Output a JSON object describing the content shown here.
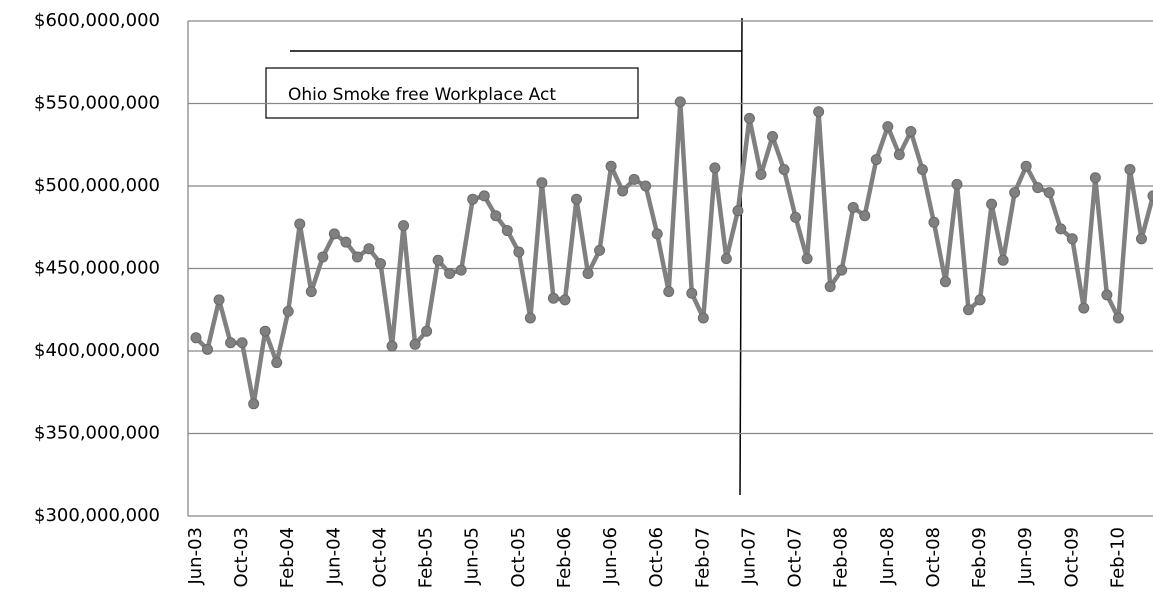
{
  "chart_data": {
    "type": "line",
    "annotation": "Ohio Smoke free Workplace Act",
    "categories": [
      "Jun-03",
      null,
      null,
      null,
      "Oct-03",
      null,
      null,
      null,
      "Feb-04",
      null,
      null,
      null,
      "Jun-04",
      null,
      null,
      null,
      "Oct-04",
      null,
      null,
      null,
      "Feb-05",
      null,
      null,
      null,
      "Jun-05",
      null,
      null,
      null,
      "Oct-05",
      null,
      null,
      null,
      "Feb-06",
      null,
      null,
      null,
      "Jun-06",
      null,
      null,
      null,
      "Oct-06",
      null,
      null,
      null,
      "Feb-07",
      null,
      null,
      null,
      "Jun-07",
      null,
      null,
      null,
      "Oct-07",
      null,
      null,
      null,
      "Feb-08",
      null,
      null,
      null,
      "Jun-08",
      null,
      null,
      null,
      "Oct-08",
      null,
      null,
      null,
      "Feb-09",
      null,
      null,
      null,
      "Jun-09",
      null,
      null,
      null,
      "Oct-09",
      null,
      null,
      null,
      "Feb-10",
      null,
      null,
      null
    ],
    "values": [
      408000000,
      401000000,
      431000000,
      405000000,
      405000000,
      368000000,
      412000000,
      393000000,
      424000000,
      477000000,
      436000000,
      457000000,
      471000000,
      466000000,
      457000000,
      462000000,
      453000000,
      403000000,
      476000000,
      404000000,
      412000000,
      455000000,
      447000000,
      449000000,
      492000000,
      494000000,
      482000000,
      473000000,
      460000000,
      420000000,
      502000000,
      432000000,
      431000000,
      492000000,
      447000000,
      461000000,
      512000000,
      497000000,
      504000000,
      500000000,
      471000000,
      436000000,
      551000000,
      435000000,
      420000000,
      511000000,
      456000000,
      485000000,
      541000000,
      507000000,
      530000000,
      510000000,
      481000000,
      456000000,
      545000000,
      439000000,
      449000000,
      487000000,
      482000000,
      516000000,
      536000000,
      519000000,
      533000000,
      510000000,
      478000000,
      442000000,
      501000000,
      425000000,
      431000000,
      489000000,
      455000000,
      496000000,
      512000000,
      499000000,
      496000000,
      474000000,
      468000000,
      426000000,
      505000000,
      434000000,
      420000000,
      510000000,
      468000000,
      494000000
    ],
    "color": "#808080",
    "ylim": [
      300000000,
      600000000
    ],
    "yticks": [
      {
        "value": 300000000,
        "label": "$300,000,000"
      },
      {
        "value": 350000000,
        "label": "$350,000,000"
      },
      {
        "value": 400000000,
        "label": "$400,000,000"
      },
      {
        "value": 450000000,
        "label": "$450,000,000"
      },
      {
        "value": 500000000,
        "label": "$500,000,000"
      },
      {
        "value": 550000000,
        "label": "$550,000,000"
      },
      {
        "value": 600000000,
        "label": "$600,000,000"
      }
    ],
    "grid": true
  }
}
